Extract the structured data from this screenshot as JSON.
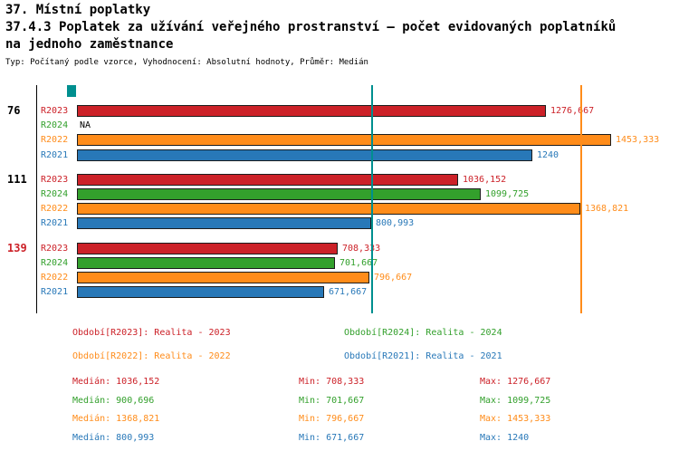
{
  "header": {
    "title": "37. Místní poplatky",
    "subtitle_line1": "37.4.3 Poplatek za užívání veřejného prostranství – počet evidovaných poplatníků",
    "subtitle_line2": "na jednoho zaměstnance",
    "meta": "Typ: Počítaný podle vzorce, Vyhodnocení: Absolutní hodnoty, Průměr: Medián"
  },
  "colors": {
    "R2023": "#cc2128",
    "R2024": "#33a02c",
    "R2022": "#ff8c1a",
    "R2021": "#2878b8",
    "median_teal": "#008f8f",
    "axis": "#000000"
  },
  "chart_data": {
    "type": "bar",
    "orientation": "horizontal",
    "value_axis": {
      "min": 0,
      "max": 1638
    },
    "series_order": [
      "R2023",
      "R2024",
      "R2022",
      "R2021"
    ],
    "groups": [
      {
        "label": "76",
        "label_color": "#000000",
        "bars": [
          {
            "series": "R2023",
            "value": 1276.667,
            "value_label": "1276,667"
          },
          {
            "series": "R2024",
            "value": null,
            "value_label": "NA"
          },
          {
            "series": "R2022",
            "value": 1453.333,
            "value_label": "1453,333"
          },
          {
            "series": "R2021",
            "value": 1240,
            "value_label": "1240"
          }
        ]
      },
      {
        "label": "111",
        "label_color": "#000000",
        "bars": [
          {
            "series": "R2023",
            "value": 1036.152,
            "value_label": "1036,152"
          },
          {
            "series": "R2024",
            "value": 1099.725,
            "value_label": "1099,725"
          },
          {
            "series": "R2022",
            "value": 1368.821,
            "value_label": "1368,821"
          },
          {
            "series": "R2021",
            "value": 800.993,
            "value_label": "800,993"
          }
        ]
      },
      {
        "label": "139",
        "label_color": "#cc2128",
        "bars": [
          {
            "series": "R2023",
            "value": 708.333,
            "value_label": "708,333"
          },
          {
            "series": "R2024",
            "value": 701.667,
            "value_label": "701,667"
          },
          {
            "series": "R2022",
            "value": 796.667,
            "value_label": "796,667"
          },
          {
            "series": "R2021",
            "value": 671.667,
            "value_label": "671,667"
          }
        ]
      }
    ],
    "median_lines": [
      {
        "series": "R2021",
        "value": 800.993,
        "color": "#008f8f"
      },
      {
        "series": "R2022",
        "value": 1368.821,
        "color": "#ff8c1a"
      }
    ]
  },
  "legend": [
    {
      "series": "R2023",
      "text": "Období[R2023]: Realita - 2023"
    },
    {
      "series": "R2024",
      "text": "Období[R2024]: Realita - 2024"
    },
    {
      "series": "R2022",
      "text": "Období[R2022]: Realita - 2022"
    },
    {
      "series": "R2021",
      "text": "Období[R2021]: Realita - 2021"
    }
  ],
  "stats": [
    {
      "series": "R2023",
      "median": "Medián: 1036,152",
      "min": "Min: 708,333",
      "max": "Max: 1276,667"
    },
    {
      "series": "R2024",
      "median": "Medián: 900,696",
      "min": "Min: 701,667",
      "max": "Max: 1099,725"
    },
    {
      "series": "R2022",
      "median": "Medián: 1368,821",
      "min": "Min: 796,667",
      "max": "Max: 1453,333"
    },
    {
      "series": "R2021",
      "median": "Medián: 800,993",
      "min": "Min: 671,667",
      "max": "Max: 1240"
    }
  ]
}
